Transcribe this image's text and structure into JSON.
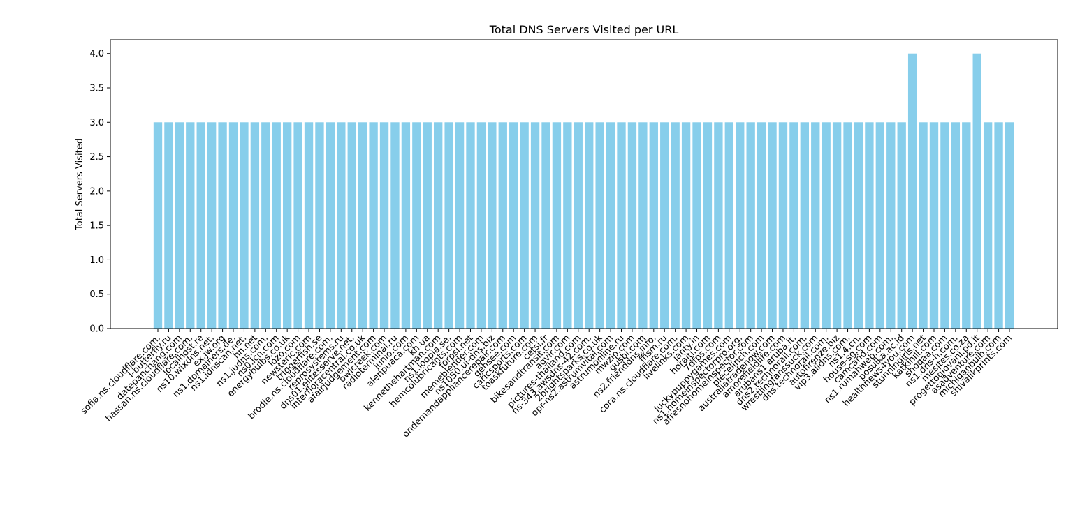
{
  "colors": {
    "bar": "#87ceeb",
    "axis": "#000000",
    "text": "#000000"
  },
  "chart_data": {
    "type": "bar",
    "title": "Total DNS Servers Visited per URL",
    "xlabel": "",
    "ylabel": "Total Servers Visited",
    "ylim": [
      0,
      4.2
    ],
    "yticks": [
      "0.0",
      "0.5",
      "1.0",
      "1.5",
      "2.0",
      "2.5",
      "3.0",
      "3.5",
      "4.0"
    ],
    "grid": false,
    "categories": [
      "sofia.ns.cloudflare.com.",
      "i-butterfly.ru",
      "datepanchang.com",
      "hassan.ns.cloudflare.com.",
      "localhost.re",
      "ns10.wixdns.net.",
      "ex.jw.org",
      "ns1.domainers.de.",
      "ns1.idnscan.net.",
      "hn.net",
      "ns1.judns.com.",
      "ns0.icn.com",
      "energybulbs.co.uk",
      "lozo.com",
      "newsteric.com",
      "triggerfish.se",
      "brodie.ns.cloudflare.com.",
      "reprosystems.ru",
      "dns01.elitesserve.net.",
      "interfloracentral.co.uk",
      "afairjudgement.com",
      "owlcreek.com",
      "radioterminal.ru",
      "junio.com",
      "alenpuaca.com",
      "kh.ua",
      "kennethehartman.com",
      "ns1.loopia.se.",
      "hemcolubricants.com",
      "forpsi.net",
      "memeblender.com",
      "ns1050.ui-dns.biz",
      "ondemandappliancerepair.com",
      "gehsee.com",
      "caricsports.com",
      "toaskfuture.com",
      "cetsi.fr",
      "bikesandtransit.com",
      "agvir.com",
      "pictures-thailand.com",
      "ns-343.awsdns-42.com.",
      "2brightsparks.co.uk",
      "opr-ns2.astrumvital.com",
      "astrumonline.ru",
      "mwzip.com",
      "gusbi.com",
      "ns2.frienddns.info.",
      "ffism.ru",
      "cora.ns.cloudflare.com.",
      "livelinks.com",
      "janty.in",
      "horaiti.com",
      "7dfps.com",
      "luckypuppygames.com",
      "ns1.homeinspectorpro.org.",
      "afresnohomeinspector.com",
      "piecelinch.com",
      "australiatradenow.com",
      "amorefieldlife.com",
      "arubans1.aruba.it.",
      "dns2.technorail.com.",
      "wrestlingfanssuck.com",
      "dns.technorail.com.",
      "autofirenze.biz",
      "vip3.alidns.com.",
      "ns1.4.cn.",
      "house-sg.com",
      "camcarid.com",
      "ns1.rumahweb.com.",
      "posulka.ac.id",
      "healthnews4you.com",
      "stunningirls.net",
      "katkihill.com",
      "shoqaa.com",
      "ns1.dns-h.com.",
      "mesites.co.za",
      "progettogiovani.pd.it",
      "asadventure.com",
      "michiganbulb.com",
      "shivalikprints.com"
    ],
    "values": [
      3,
      3,
      3,
      3,
      3,
      3,
      3,
      3,
      3,
      3,
      3,
      3,
      3,
      3,
      3,
      3,
      3,
      3,
      3,
      3,
      3,
      3,
      3,
      3,
      3,
      3,
      3,
      3,
      3,
      3,
      3,
      3,
      3,
      3,
      3,
      3,
      3,
      3,
      3,
      3,
      3,
      3,
      3,
      3,
      3,
      3,
      3,
      3,
      3,
      3,
      3,
      3,
      3,
      3,
      3,
      3,
      3,
      3,
      3,
      3,
      3,
      3,
      3,
      3,
      3,
      3,
      3,
      3,
      3,
      3,
      4,
      3,
      3,
      3,
      3,
      3,
      4,
      3,
      3,
      3
    ]
  }
}
